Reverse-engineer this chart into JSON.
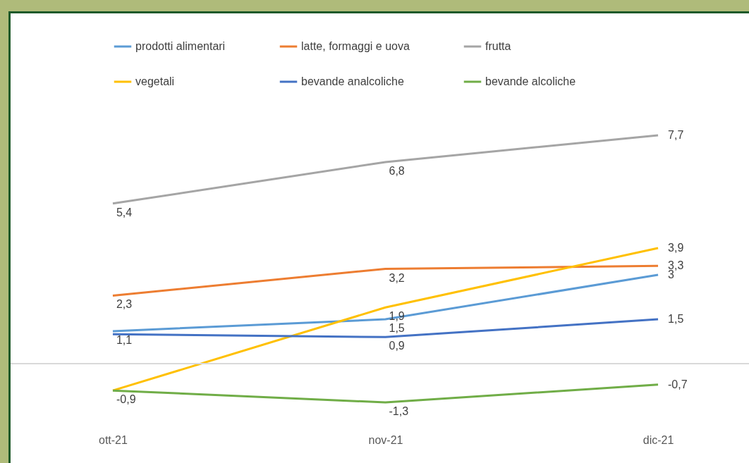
{
  "chart_data": {
    "type": "line",
    "categories": [
      "ott-21",
      "nov-21",
      "dic-21"
    ],
    "series": [
      {
        "name": "prodotti alimentari",
        "color": "#5b9bd5",
        "values": [
          1.1,
          1.5,
          3
        ],
        "value_labels": [
          "1,1",
          "1,5",
          "3"
        ]
      },
      {
        "name": "latte, formaggi e uova",
        "color": "#ed7d31",
        "values": [
          2.3,
          3.2,
          3.3
        ],
        "value_labels": [
          "2,3",
          "3,2",
          "3,3"
        ]
      },
      {
        "name": "frutta",
        "color": "#a5a5a5",
        "values": [
          5.4,
          6.8,
          7.7
        ],
        "value_labels": [
          "5,4",
          "6,8",
          "7,7"
        ]
      },
      {
        "name": "vegetali",
        "color": "#ffc000",
        "values": [
          -0.9,
          1.9,
          3.9
        ],
        "value_labels": [
          null,
          "1,9",
          "3,9"
        ]
      },
      {
        "name": "bevande analcoliche",
        "color": "#4472c4",
        "values": [
          1,
          0.9,
          1.5
        ],
        "value_labels": [
          null,
          "0,9",
          "1,5"
        ]
      },
      {
        "name": "bevande alcoliche",
        "color": "#70ad47",
        "values": [
          -0.9,
          -1.3,
          -0.7
        ],
        "value_labels": [
          "-0,9",
          "-1,3",
          "-0,7"
        ]
      }
    ],
    "tick_labels": "x",
    "legend": "top",
    "marker": "none",
    "line_style": "solid",
    "ref_lines": [
      {
        "axis": "y",
        "value": 0,
        "color": "#d9d9d9"
      }
    ]
  }
}
